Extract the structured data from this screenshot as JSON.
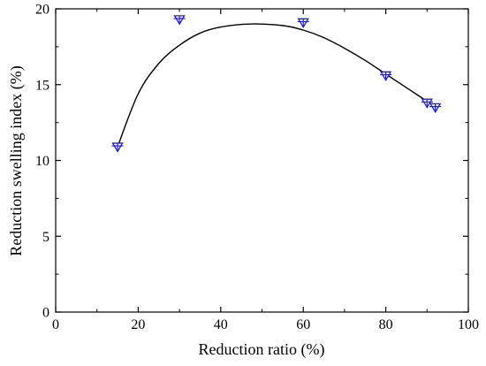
{
  "chart_data": {
    "type": "scatter",
    "title": "",
    "xlabel": "Reduction ratio (%)",
    "ylabel": "Reduction swelling index (%)",
    "xlim": [
      0,
      100
    ],
    "ylim": [
      0,
      20
    ],
    "x_ticks": [
      0,
      20,
      40,
      60,
      80,
      100
    ],
    "y_ticks": [
      0,
      5,
      10,
      15,
      20
    ],
    "grid": false,
    "legend": "none",
    "marker": "down-triangle-cross",
    "marker_color": "#1f1fd8",
    "fit_color": "#000000",
    "series": [
      {
        "points": [
          {
            "x": 15,
            "y": 10.9
          },
          {
            "x": 30,
            "y": 19.3
          },
          {
            "x": 60,
            "y": 19.1
          },
          {
            "x": 80,
            "y": 15.6
          },
          {
            "x": 90,
            "y": 13.8
          },
          {
            "x": 92,
            "y": 13.5
          }
        ]
      }
    ],
    "fit_curve": [
      {
        "x": 15,
        "y": 10.9
      },
      {
        "x": 20,
        "y": 14.4
      },
      {
        "x": 25,
        "y": 16.4
      },
      {
        "x": 30,
        "y": 17.6
      },
      {
        "x": 35,
        "y": 18.4
      },
      {
        "x": 40,
        "y": 18.8
      },
      {
        "x": 47,
        "y": 19.0
      },
      {
        "x": 55,
        "y": 18.9
      },
      {
        "x": 60,
        "y": 18.6
      },
      {
        "x": 65,
        "y": 18.1
      },
      {
        "x": 70,
        "y": 17.4
      },
      {
        "x": 75,
        "y": 16.6
      },
      {
        "x": 80,
        "y": 15.7
      },
      {
        "x": 85,
        "y": 14.8
      },
      {
        "x": 90,
        "y": 13.9
      },
      {
        "x": 92,
        "y": 13.5
      }
    ]
  }
}
